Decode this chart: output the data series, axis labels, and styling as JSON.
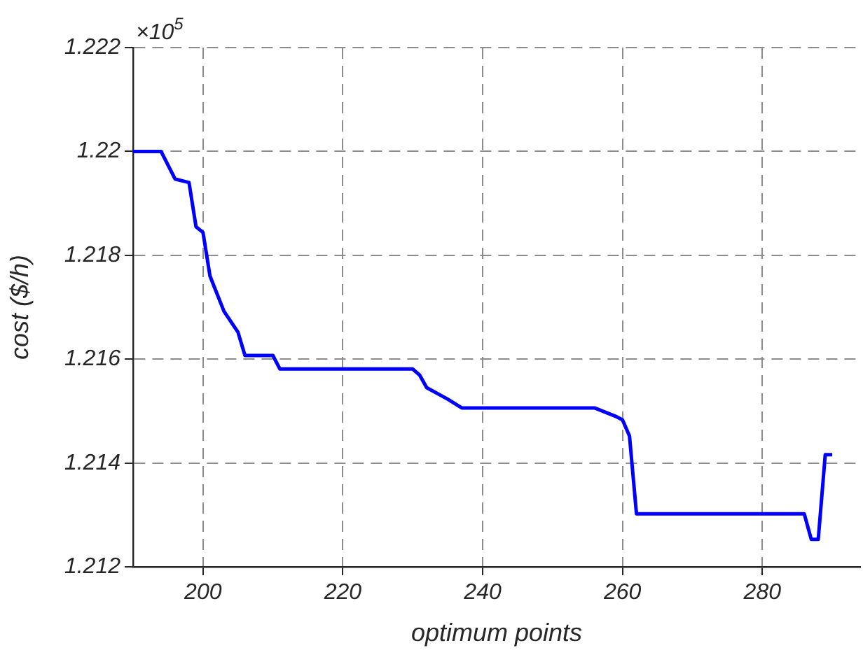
{
  "chart_data": {
    "type": "line",
    "xlabel": "optimum points",
    "ylabel": "cost ($/h)",
    "annotations": [
      "×10$^{5}$"
    ],
    "series": [
      {
        "color": "#0000ff",
        "x": [
          190,
          194,
          196,
          198,
          199,
          200,
          201,
          203,
          205,
          206,
          210,
          211,
          230,
          231,
          232,
          235,
          237,
          256,
          259,
          260,
          261,
          262,
          286,
          287,
          288,
          289,
          290
        ],
        "values": [
          1.22,
          1.22,
          1.21947,
          1.2194,
          1.21855,
          1.21844,
          1.2176,
          1.21692,
          1.21652,
          1.21607,
          1.21607,
          1.21581,
          1.21581,
          1.21569,
          1.21545,
          1.21523,
          1.21506,
          1.21506,
          1.2149,
          1.21483,
          1.21452,
          1.21302,
          1.21302,
          1.21253,
          1.21253,
          1.21416,
          1.21416
        ]
      }
    ],
    "xlim": [
      190,
      294
    ],
    "xticks": [
      200,
      220,
      240,
      260,
      280
    ],
    "ylim": [
      1.212,
      1.222
    ],
    "yticks": [
      1.212,
      1.214,
      1.216,
      1.218,
      1.22,
      1.222
    ],
    "grid": true,
    "legend": false,
    "marker": "none",
    "line_style": "solid"
  }
}
